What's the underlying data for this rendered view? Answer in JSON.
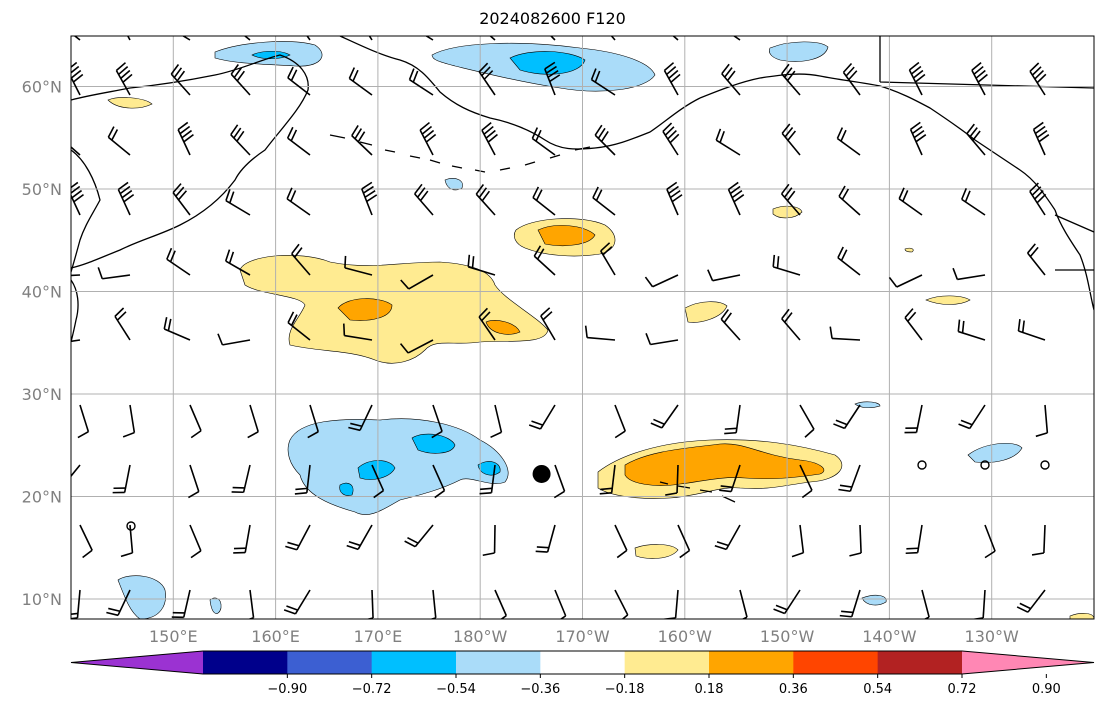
{
  "title": "2024082600 F120",
  "map": {
    "lat_ticks": [
      {
        "value": 60,
        "label": "60°N"
      },
      {
        "value": 50,
        "label": "50°N"
      },
      {
        "value": 40,
        "label": "40°N"
      },
      {
        "value": 30,
        "label": "30°N"
      },
      {
        "value": 20,
        "label": "20°N"
      },
      {
        "value": 10,
        "label": "10°N"
      }
    ],
    "lon_ticks": [
      {
        "value": 150,
        "label": "150°E"
      },
      {
        "value": 160,
        "label": "160°E"
      },
      {
        "value": 170,
        "label": "170°E"
      },
      {
        "value": 180,
        "label": "180°W"
      },
      {
        "value": 190,
        "label": "170°W"
      },
      {
        "value": 200,
        "label": "160°W"
      },
      {
        "value": 210,
        "label": "150°W"
      },
      {
        "value": 220,
        "label": "140°W"
      },
      {
        "value": 230,
        "label": "130°W"
      }
    ],
    "extent": {
      "lon_min": 140,
      "lon_max": 240,
      "lat_min": 8,
      "lat_max": 65
    },
    "storm_marker": {
      "lon": 186,
      "lat": 22.2
    }
  },
  "colorbar": {
    "ticks": [
      "−0.90",
      "−0.72",
      "−0.54",
      "−0.36",
      "−0.18",
      "0.18",
      "0.36",
      "0.54",
      "0.72",
      "0.90"
    ],
    "colors": [
      "#9b32d2",
      "#00008b",
      "#3c5fd2",
      "#00bfff",
      "#aadcf9",
      "#ffffff",
      "#ffeb91",
      "#ffa500",
      "#ff4500",
      "#b22222",
      "#ff87b4"
    ]
  },
  "colors": {
    "grid": "#b0b0b0",
    "coast": "#000000",
    "light_blue": "#aadcf9",
    "blue": "#00bfff",
    "light_yellow": "#ffeb91",
    "orange": "#ffa500"
  }
}
